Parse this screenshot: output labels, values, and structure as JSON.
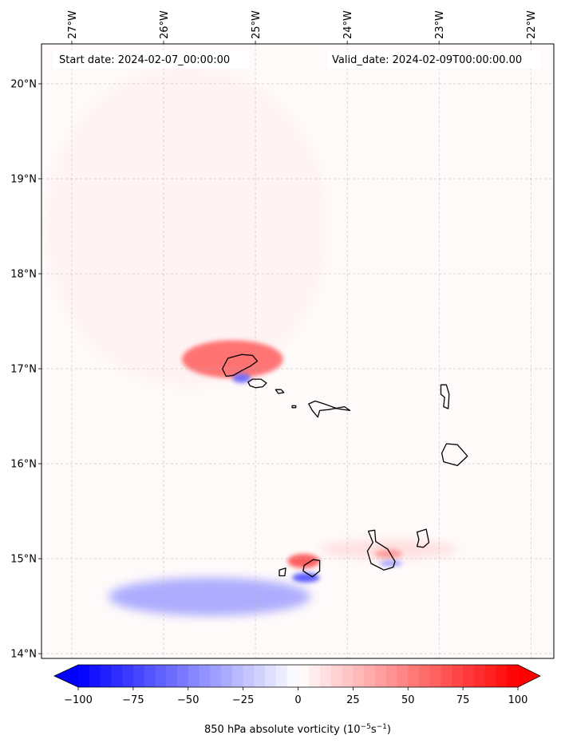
{
  "header": {
    "start_date": "Start date: 2024-02-07_00:00:00",
    "valid_date": "Valid_date: 2024-02-09T00:00:00.00"
  },
  "colorbar": {
    "label": "850 hPa absolute vorticity (10",
    "label_exp1": "−5",
    "label_mid": "s",
    "label_exp2": "−1",
    "label_end": ")",
    "ticks": [
      {
        "value": -100,
        "text": "−100"
      },
      {
        "value": -75,
        "text": "−75"
      },
      {
        "value": -50,
        "text": "−50"
      },
      {
        "value": -25,
        "text": "−25"
      },
      {
        "value": 0,
        "text": "0"
      },
      {
        "value": 25,
        "text": "25"
      },
      {
        "value": 50,
        "text": "50"
      },
      {
        "value": 75,
        "text": "75"
      },
      {
        "value": 100,
        "text": "100"
      }
    ],
    "cmap": "bwr",
    "extend": "both",
    "levels": 40,
    "colors": {
      "neg": "#0000ff",
      "mid": "#ffffff",
      "pos": "#ff0000"
    }
  },
  "chart_data": {
    "type": "heatmap",
    "map_projection": "PlateCarree",
    "xlim": [
      -27.33,
      -21.75
    ],
    "ylim": [
      13.95,
      20.42
    ],
    "lon_ticks": [
      {
        "value": -27,
        "text": "27°W"
      },
      {
        "value": -26,
        "text": "26°W"
      },
      {
        "value": -25,
        "text": "25°W"
      },
      {
        "value": -24,
        "text": "24°W"
      },
      {
        "value": -23,
        "text": "23°W"
      },
      {
        "value": -22,
        "text": "22°W"
      }
    ],
    "lat_ticks": [
      {
        "value": 14,
        "text": "14°N"
      },
      {
        "value": 15,
        "text": "15°N"
      },
      {
        "value": 16,
        "text": "16°N"
      },
      {
        "value": 17,
        "text": "17°N"
      },
      {
        "value": 18,
        "text": "18°N"
      },
      {
        "value": 19,
        "text": "19°N"
      },
      {
        "value": 20,
        "text": "20°N"
      }
    ],
    "grid": true,
    "field_features": [
      {
        "type": "broad_positive_band",
        "lon": [
          -27.3,
          -24.2
        ],
        "lat": [
          16.8,
          20.2
        ],
        "value": 5
      },
      {
        "type": "positive_streak",
        "lon": [
          -25.8,
          -24.7
        ],
        "lat": [
          16.9,
          17.3
        ],
        "value": 60
      },
      {
        "type": "negative_core",
        "lon": [
          -25.25,
          -25.05
        ],
        "lat": [
          16.85,
          16.95
        ],
        "value": -60
      },
      {
        "type": "positive_core",
        "lon": [
          -24.65,
          -24.3
        ],
        "lat": [
          14.9,
          15.05
        ],
        "value": 70
      },
      {
        "type": "negative_core",
        "lon": [
          -24.6,
          -24.3
        ],
        "lat": [
          14.75,
          14.85
        ],
        "value": -70
      },
      {
        "type": "negative_tail",
        "lon": [
          -26.6,
          -24.4
        ],
        "lat": [
          14.4,
          14.8
        ],
        "value": -40
      },
      {
        "type": "positive_tail",
        "lon": [
          -24.3,
          -22.8
        ],
        "lat": [
          15.0,
          15.2
        ],
        "value": 15
      },
      {
        "type": "positive_core",
        "lon": [
          -23.7,
          -23.4
        ],
        "lat": [
          15.0,
          15.1
        ],
        "value": 40
      },
      {
        "type": "negative_core",
        "lon": [
          -23.65,
          -23.4
        ],
        "lat": [
          14.92,
          14.98
        ],
        "value": -40
      }
    ],
    "islands": [
      {
        "name": "Santo Antao",
        "lonlat": [
          [
            -25.36,
            17.0
          ],
          [
            -25.3,
            17.11
          ],
          [
            -25.15,
            17.15
          ],
          [
            -25.03,
            17.14
          ],
          [
            -24.98,
            17.08
          ],
          [
            -25.05,
            17.03
          ],
          [
            -25.15,
            16.98
          ],
          [
            -25.24,
            16.93
          ],
          [
            -25.32,
            16.92
          ]
        ]
      },
      {
        "name": "Sao Vicente",
        "lonlat": [
          [
            -25.08,
            16.86
          ],
          [
            -25.03,
            16.89
          ],
          [
            -24.94,
            16.89
          ],
          [
            -24.88,
            16.85
          ],
          [
            -24.92,
            16.81
          ],
          [
            -25.0,
            16.8
          ],
          [
            -25.06,
            16.82
          ]
        ]
      },
      {
        "name": "Santa Luzia",
        "lonlat": [
          [
            -24.78,
            16.78
          ],
          [
            -24.72,
            16.78
          ],
          [
            -24.69,
            16.75
          ],
          [
            -24.75,
            16.74
          ]
        ]
      },
      {
        "name": "Ilheu Raso",
        "lonlat": [
          [
            -24.6,
            16.61
          ],
          [
            -24.56,
            16.61
          ],
          [
            -24.56,
            16.59
          ],
          [
            -24.6,
            16.59
          ]
        ]
      },
      {
        "name": "Sao Nicolau",
        "lonlat": [
          [
            -24.42,
            16.63
          ],
          [
            -24.35,
            16.66
          ],
          [
            -24.25,
            16.63
          ],
          [
            -24.11,
            16.58
          ],
          [
            -23.97,
            16.56
          ],
          [
            -24.03,
            16.6
          ],
          [
            -24.2,
            16.57
          ],
          [
            -24.3,
            16.56
          ],
          [
            -24.32,
            16.49
          ],
          [
            -24.38,
            16.56
          ]
        ]
      },
      {
        "name": "Sal",
        "lonlat": [
          [
            -22.98,
            16.83
          ],
          [
            -22.92,
            16.83
          ],
          [
            -22.89,
            16.73
          ],
          [
            -22.9,
            16.58
          ],
          [
            -22.95,
            16.6
          ],
          [
            -22.94,
            16.7
          ],
          [
            -22.98,
            16.73
          ]
        ]
      },
      {
        "name": "Boa Vista",
        "lonlat": [
          [
            -22.92,
            16.21
          ],
          [
            -22.8,
            16.2
          ],
          [
            -22.69,
            16.08
          ],
          [
            -22.8,
            15.98
          ],
          [
            -22.95,
            16.02
          ],
          [
            -22.97,
            16.11
          ]
        ]
      },
      {
        "name": "Maio",
        "lonlat": [
          [
            -23.24,
            15.28
          ],
          [
            -23.14,
            15.31
          ],
          [
            -23.11,
            15.17
          ],
          [
            -23.17,
            15.12
          ],
          [
            -23.24,
            15.13
          ],
          [
            -23.22,
            15.2
          ]
        ]
      },
      {
        "name": "Santiago",
        "lonlat": [
          [
            -23.77,
            15.29
          ],
          [
            -23.7,
            15.3
          ],
          [
            -23.69,
            15.18
          ],
          [
            -23.56,
            15.1
          ],
          [
            -23.48,
            14.97
          ],
          [
            -23.5,
            14.91
          ],
          [
            -23.6,
            14.88
          ],
          [
            -23.74,
            14.95
          ],
          [
            -23.78,
            15.08
          ],
          [
            -23.72,
            15.17
          ]
        ]
      },
      {
        "name": "Fogo",
        "lonlat": [
          [
            -24.47,
            14.93
          ],
          [
            -24.37,
            14.99
          ],
          [
            -24.3,
            14.98
          ],
          [
            -24.3,
            14.87
          ],
          [
            -24.38,
            14.81
          ],
          [
            -24.48,
            14.87
          ]
        ]
      },
      {
        "name": "Brava",
        "lonlat": [
          [
            -24.74,
            14.88
          ],
          [
            -24.67,
            14.9
          ],
          [
            -24.68,
            14.82
          ],
          [
            -24.74,
            14.82
          ]
        ]
      }
    ]
  }
}
